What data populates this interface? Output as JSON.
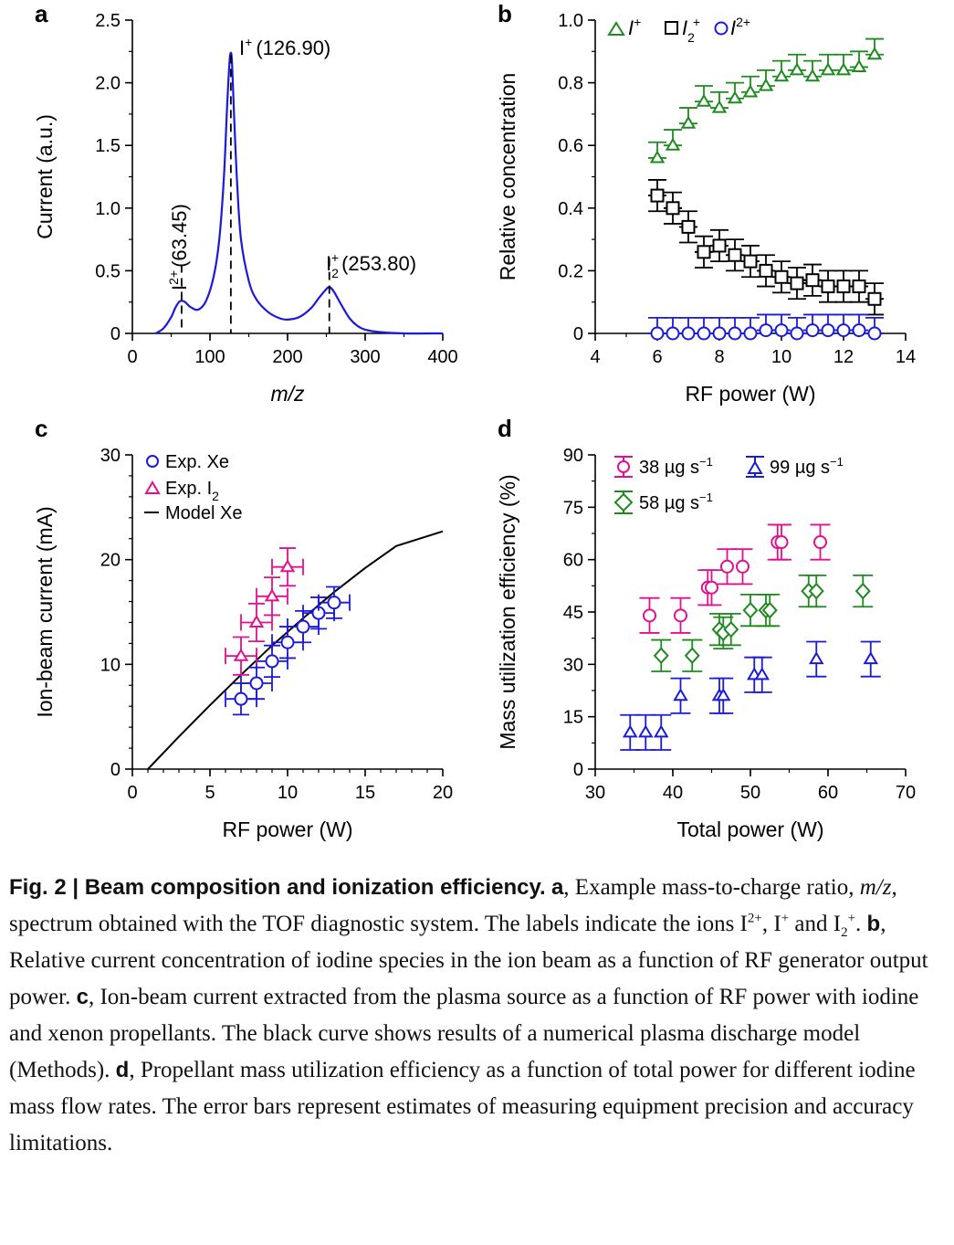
{
  "colors": {
    "blue": "#1a1adb",
    "green": "#1f8a1f",
    "pink": "#e0108f",
    "black": "#000000"
  },
  "panels": {
    "a": {
      "letter": "a",
      "chart_data": {
        "type": "line",
        "xlabel": "m/z",
        "ylabel": "Current (a.u.)",
        "xlim": [
          0,
          400
        ],
        "ylim": [
          0,
          2.5
        ],
        "xticks": [
          "0",
          "100",
          "200",
          "300",
          "400"
        ],
        "yticks": [
          "0",
          "0.5",
          "1.0",
          "1.5",
          "2.0",
          "2.5"
        ],
        "peaks": [
          {
            "x": 63.45,
            "label": "I2+ (63.45)",
            "text": "(63.45)"
          },
          {
            "x": 126.9,
            "label": "I+ (126.90)",
            "text": "(126.90)"
          },
          {
            "x": 253.8,
            "label": "I2+ (253.80)",
            "text": "(253.80)"
          }
        ],
        "series": [
          {
            "x": [
              30,
              40,
              50,
              55,
              60,
              63.45,
              68,
              75,
              85,
              95,
              105,
              112,
              118,
              122,
              125,
              126.9,
              128.5,
              131,
              135,
              140,
              150,
              160,
              175,
              190,
              200,
              215,
              230,
              240,
              248,
              253.8,
              260,
              270,
              280,
              290,
              300,
              320,
              350,
              400
            ],
            "y": [
              0,
              0.04,
              0.13,
              0.2,
              0.25,
              0.26,
              0.25,
              0.21,
              0.19,
              0.26,
              0.46,
              0.75,
              1.25,
              1.8,
              2.15,
              2.24,
              2.15,
              1.75,
              1.2,
              0.75,
              0.42,
              0.27,
              0.17,
              0.12,
              0.11,
              0.13,
              0.2,
              0.28,
              0.34,
              0.37,
              0.33,
              0.22,
              0.12,
              0.06,
              0.03,
              0.01,
              0.0,
              0.0
            ]
          }
        ]
      }
    },
    "b": {
      "letter": "b",
      "chart_data": {
        "type": "scatter",
        "xlabel": "RF power (W)",
        "ylabel": "Relative concentration",
        "xlim": [
          4,
          14
        ],
        "ylim": [
          0,
          1.0
        ],
        "xticks": [
          "4",
          "6",
          "8",
          "10",
          "12",
          "14"
        ],
        "yticks": [
          "0",
          "0.2",
          "0.4",
          "0.6",
          "0.8",
          "1.0"
        ],
        "legend": [
          "I+",
          "I2+",
          "I2+"
        ],
        "series": [
          {
            "name": "I+",
            "marker": "triangle",
            "color": "green",
            "x": [
              6,
              6.5,
              7,
              7.5,
              8,
              8.5,
              9,
              9.5,
              10,
              10.5,
              11,
              11.5,
              12,
              12.5,
              13
            ],
            "y": [
              0.56,
              0.6,
              0.67,
              0.74,
              0.72,
              0.75,
              0.77,
              0.79,
              0.82,
              0.84,
              0.82,
              0.84,
              0.84,
              0.85,
              0.89
            ],
            "err": 0.05
          },
          {
            "name": "I2+",
            "marker": "square",
            "color": "black",
            "x": [
              6,
              6.5,
              7,
              7.5,
              8,
              8.5,
              9,
              9.5,
              10,
              10.5,
              11,
              11.5,
              12,
              12.5,
              13
            ],
            "y": [
              0.44,
              0.4,
              0.34,
              0.26,
              0.28,
              0.25,
              0.23,
              0.2,
              0.18,
              0.16,
              0.17,
              0.15,
              0.15,
              0.15,
              0.11
            ],
            "err": 0.05
          },
          {
            "name": "I2+",
            "marker": "circle",
            "color": "blue",
            "x": [
              6,
              6.5,
              7,
              7.5,
              8,
              8.5,
              9,
              9.5,
              10,
              10.5,
              11,
              11.5,
              12,
              12.5,
              13
            ],
            "y": [
              0.0,
              0.0,
              0.0,
              0.0,
              0.0,
              0.0,
              0.0,
              0.01,
              0.01,
              0.0,
              0.01,
              0.01,
              0.01,
              0.01,
              0.0
            ],
            "err": 0.05
          }
        ]
      }
    },
    "c": {
      "letter": "c",
      "chart_data": {
        "type": "scatter",
        "xlabel": "RF power (W)",
        "ylabel": "Ion-beam current (mA)",
        "xlim": [
          0,
          20
        ],
        "ylim": [
          0,
          30
        ],
        "xticks": [
          "0",
          "5",
          "10",
          "15",
          "20"
        ],
        "yticks": [
          "0",
          "10",
          "20",
          "30"
        ],
        "legend": [
          "Exp. Xe",
          "Exp. I2",
          "Model Xe"
        ],
        "series": [
          {
            "name": "Exp. Xe",
            "marker": "circle",
            "color": "blue",
            "x": [
              7,
              8,
              9,
              10,
              11,
              12,
              13
            ],
            "y": [
              6.7,
              8.2,
              10.3,
              12.1,
              13.6,
              14.9,
              15.9
            ],
            "xerr": 1,
            "yerr": 1.5
          },
          {
            "name": "Exp. I2",
            "marker": "triangle",
            "color": "pink",
            "x": [
              7,
              8,
              9,
              10
            ],
            "y": [
              10.8,
              14,
              16.5,
              19.3
            ],
            "xerr": 1,
            "yerr": 1.8
          },
          {
            "name": "Model Xe",
            "marker": "line",
            "color": "black",
            "x": [
              1,
              3,
              5,
              7,
              9,
              11,
              13,
              15,
              17,
              20
            ],
            "y": [
              0,
              3.1,
              6.1,
              9.0,
              11.8,
              14.4,
              16.9,
              19.2,
              21.3,
              22.7
            ]
          }
        ]
      }
    },
    "d": {
      "letter": "d",
      "chart_data": {
        "type": "scatter",
        "xlabel": "Total power (W)",
        "ylabel": "Mass utilization efficiency (%)",
        "xlim": [
          30,
          70
        ],
        "ylim": [
          0,
          90
        ],
        "xticks": [
          "30",
          "40",
          "50",
          "60",
          "70"
        ],
        "yticks": [
          "0",
          "15",
          "30",
          "45",
          "60",
          "75",
          "90"
        ],
        "legend": [
          "38 µg s−1",
          "58 µg s−1",
          "99 µg s−1"
        ],
        "legend_text": {
          "l1": "38",
          "l2": "58",
          "l3": "99",
          "unit": "µg s",
          "exp": "−1"
        },
        "series": [
          {
            "name": "38 µg s−1",
            "marker": "circle",
            "color": "pink",
            "x": [
              37,
              41,
              44.5,
              45,
              47,
              49,
              53.5,
              54,
              59
            ],
            "y": [
              44,
              44,
              52,
              52,
              58,
              58,
              65,
              65,
              65
            ],
            "err": 5
          },
          {
            "name": "58 µg s−1",
            "marker": "diamond",
            "color": "green",
            "x": [
              38.5,
              42.5,
              46,
              46.5,
              47.5,
              50,
              52,
              52.5,
              57.5,
              58.5,
              64.5
            ],
            "y": [
              32.5,
              32.5,
              40,
              39,
              40,
              45.5,
              45.5,
              45.5,
              51,
              51,
              51
            ],
            "err": 4.5
          },
          {
            "name": "99 µg s−1",
            "marker": "triangle",
            "color": "blue",
            "x": [
              34.5,
              36.5,
              38.5,
              41,
              46,
              46.5,
              50.5,
              51.5,
              58.5,
              65.5
            ],
            "y": [
              10.5,
              10.5,
              10.5,
              21,
              21,
              21,
              27,
              27,
              31.5,
              31.5
            ],
            "err": 5
          }
        ]
      }
    }
  },
  "caption": {
    "fig": "Fig. 2 | Beam composition and ionization efficiency.",
    "a_label": "a",
    "a_text1": ", Example mass-to-charge ratio, ",
    "mz": "m/z",
    "a_text2": ", spectrum obtained with the TOF diagnostic system. The labels indicate the ions I",
    "sup_2plus": "2+",
    "a_text3": ", I",
    "sup_plus": "+",
    "a_text4": " and I",
    "sub_2": "2",
    "a_text5": ". ",
    "b_label": "b",
    "b_text": ", Relative current concentration of iodine species in the ion beam as a function of RF generator output power. ",
    "c_label": "c",
    "c_text": ", Ion-beam current extracted from the plasma source as a function of RF power with iodine and xenon propellants. The black curve shows results of a numerical plasma discharge model (Methods). ",
    "d_label": "d",
    "d_text": ", Propellant mass utilization efficiency as a function of total power for different iodine mass flow rates. The error bars represent estimates of measuring equipment precision and accuracy limitations."
  }
}
